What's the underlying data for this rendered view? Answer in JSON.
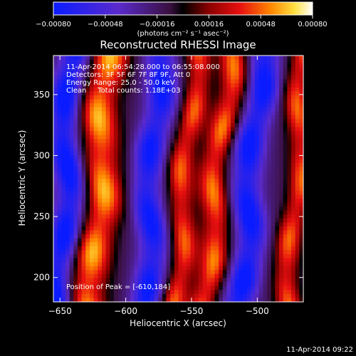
{
  "chart_data": {
    "type": "heatmap",
    "title": "Reconstructed RHESSI Image",
    "xlabel": "Heliocentric X (arcsec)",
    "ylabel": "Heliocentric Y (arcsec)",
    "xlim": [
      -655,
      -465
    ],
    "ylim": [
      180,
      382
    ],
    "x_ticks": [
      -650,
      -600,
      -550,
      -500
    ],
    "x_tick_labels": [
      "−650",
      "−600",
      "−550",
      "−500"
    ],
    "y_ticks": [
      200,
      250,
      300,
      350
    ],
    "y_tick_labels": [
      "200",
      "250",
      "300",
      "350"
    ],
    "colorbar": {
      "range": [
        -0.0008,
        0.0008
      ],
      "ticks": [
        -0.0008,
        -0.00048,
        -0.00016,
        0.00016,
        0.00048,
        0.0008
      ],
      "tick_labels": [
        "−0.00080",
        "−0.00048",
        "−0.00016",
        "0.00016",
        "0.00048",
        "0.00080"
      ],
      "units_label": "(photons cm⁻² s⁻¹ asec⁻²)"
    },
    "annotations": [
      "11-Apr-2014 06:54:28.000 to 06:55:08.000",
      "Detectors: 3F 5F 6F 7F 8F 9F, Att 0",
      "Energy Range: 25.0 - 50.0 keV",
      "Clean     Total counts: 1.18E+03"
    ],
    "peak_label": "Position of Peak = [-610,184]",
    "peak_position": [
      -610,
      184
    ],
    "ridges": [
      {
        "kind": "positive",
        "x_center": -620,
        "tilt": 6,
        "width": 15,
        "amplitude": 0.0008
      },
      {
        "kind": "positive",
        "x_center": -555,
        "tilt": 8,
        "width": 10,
        "amplitude": 0.00065
      },
      {
        "kind": "positive",
        "x_center": -530,
        "tilt": 10,
        "width": 11,
        "amplitude": 0.0007
      },
      {
        "kind": "positive",
        "x_center": -470,
        "tilt": 6,
        "width": 10,
        "amplitude": 0.00065
      },
      {
        "kind": "negative",
        "x_center": -645,
        "tilt": 4,
        "width": 12,
        "amplitude": -0.0008
      },
      {
        "kind": "negative",
        "x_center": -580,
        "tilt": 5,
        "width": 12,
        "amplitude": -0.0007
      },
      {
        "kind": "negative",
        "x_center": -505,
        "tilt": 8,
        "width": 12,
        "amplitude": -0.00075
      }
    ]
  },
  "footer": {
    "timestamp": "11-Apr-2014 09:22"
  }
}
